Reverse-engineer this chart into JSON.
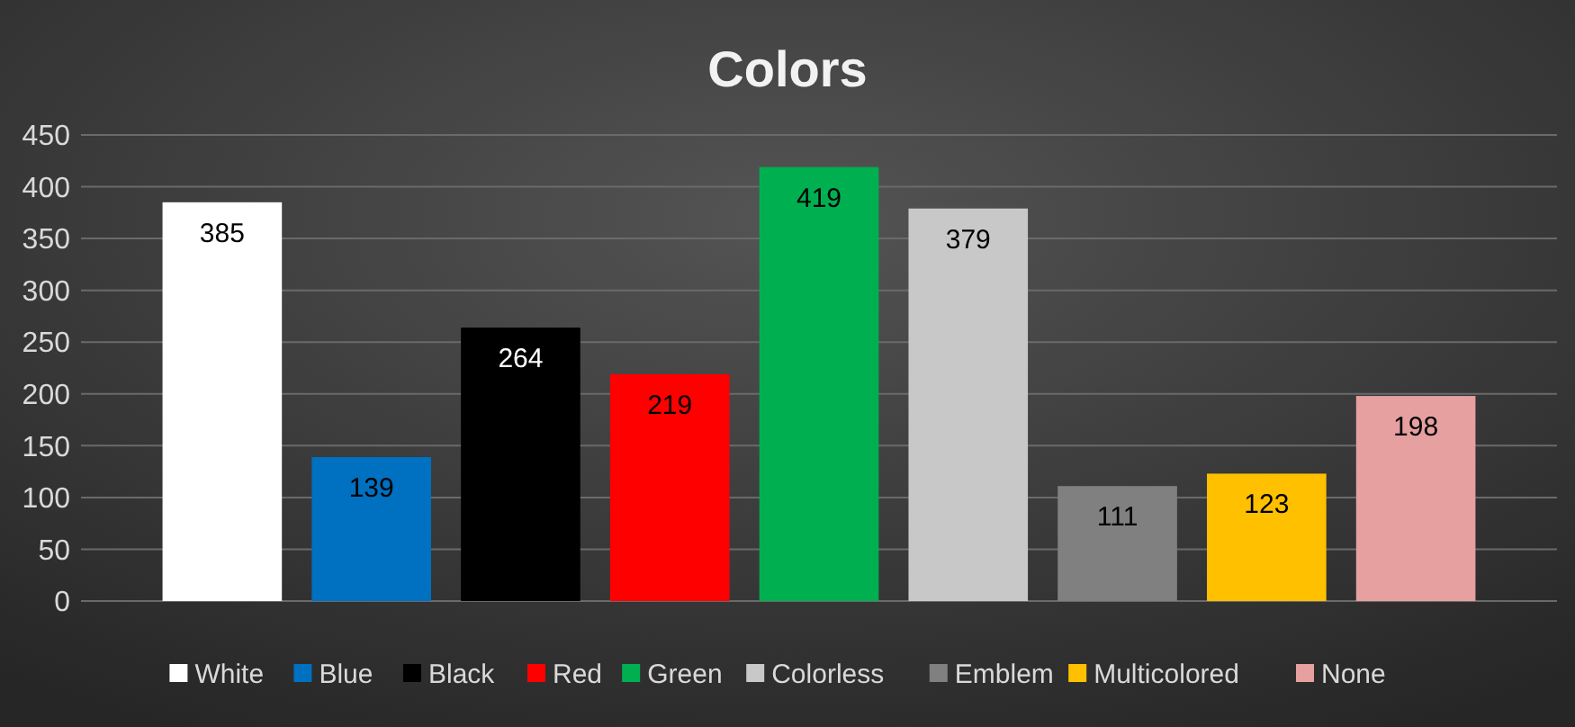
{
  "chart_data": {
    "type": "bar",
    "title": "Colors",
    "categories": [
      null,
      null,
      null,
      null,
      null,
      null,
      null,
      null,
      null
    ],
    "data_labels": true,
    "grid": "y",
    "legend": "bottom",
    "ylim": [
      0,
      450
    ],
    "yticks": [
      0,
      50,
      100,
      150,
      200,
      250,
      300,
      350,
      400,
      450
    ],
    "series": [
      {
        "name": "White",
        "color": "#ffffff",
        "values": [
          385,
          null,
          null,
          null,
          null,
          null,
          null,
          null,
          null
        ]
      },
      {
        "name": "Blue",
        "color": "#0070c0",
        "values": [
          null,
          139,
          null,
          null,
          null,
          null,
          null,
          null,
          null
        ]
      },
      {
        "name": "Black",
        "color": "#000000",
        "values": [
          null,
          null,
          264,
          null,
          null,
          null,
          null,
          null,
          null
        ]
      },
      {
        "name": "Red",
        "color": "#ff0000",
        "values": [
          null,
          null,
          null,
          219,
          null,
          null,
          null,
          null,
          null
        ]
      },
      {
        "name": "Green",
        "color": "#00b050",
        "values": [
          null,
          null,
          null,
          null,
          419,
          null,
          null,
          null,
          null
        ]
      },
      {
        "name": "Colorless",
        "color": "#c8c8c8",
        "values": [
          null,
          null,
          null,
          null,
          null,
          379,
          null,
          null,
          null
        ]
      },
      {
        "name": "Emblem",
        "color": "#808080",
        "values": [
          null,
          null,
          null,
          null,
          null,
          null,
          111,
          null,
          null
        ]
      },
      {
        "name": "Multicolored",
        "color": "#ffc000",
        "values": [
          null,
          null,
          null,
          null,
          null,
          null,
          null,
          123,
          null
        ]
      },
      {
        "name": "None",
        "color": "#e6a0a0",
        "values": [
          null,
          null,
          null,
          null,
          null,
          null,
          null,
          null,
          198
        ]
      }
    ]
  }
}
